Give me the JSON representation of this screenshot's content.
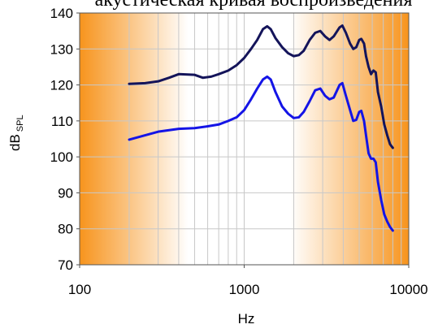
{
  "chart_data": {
    "type": "line",
    "title": "акустическая кривая воспроизведения",
    "xlabel": "Hz",
    "ylabel": "dB",
    "ylabel_sub": "SPL",
    "xscale": "log",
    "xlim": [
      100,
      10000
    ],
    "ylim": [
      70,
      140
    ],
    "xticks": [
      "100",
      "1000",
      "10000"
    ],
    "yticks": [
      "70",
      "80",
      "90",
      "100",
      "110",
      "120",
      "130",
      "140"
    ],
    "grid": true,
    "legend": "none",
    "background": "orange-white-orange gradient",
    "colors": {
      "series1": "#14145a",
      "series2": "#1414e6",
      "edge": "#f7941d"
    },
    "series": [
      {
        "points": [
          [
            200,
            120.3
          ],
          [
            250,
            120.5
          ],
          [
            300,
            121
          ],
          [
            350,
            122
          ],
          [
            400,
            123
          ],
          [
            500,
            122.8
          ],
          [
            560,
            122
          ],
          [
            630,
            122.3
          ],
          [
            700,
            123
          ],
          [
            800,
            124
          ],
          [
            900,
            125.5
          ],
          [
            1000,
            127.5
          ],
          [
            1100,
            130
          ],
          [
            1200,
            132.5
          ],
          [
            1300,
            135.5
          ],
          [
            1380,
            136.3
          ],
          [
            1450,
            135.5
          ],
          [
            1550,
            133
          ],
          [
            1700,
            130.5
          ],
          [
            1850,
            128.8
          ],
          [
            2000,
            128
          ],
          [
            2150,
            128.3
          ],
          [
            2300,
            129.5
          ],
          [
            2500,
            132.5
          ],
          [
            2700,
            134.5
          ],
          [
            2900,
            135
          ],
          [
            3100,
            133.5
          ],
          [
            3300,
            132.5
          ],
          [
            3500,
            133.5
          ],
          [
            3800,
            136
          ],
          [
            3950,
            136.5
          ],
          [
            4150,
            134.5
          ],
          [
            4400,
            131.5
          ],
          [
            4600,
            130
          ],
          [
            4800,
            130.5
          ],
          [
            5000,
            132.5
          ],
          [
            5150,
            132.8
          ],
          [
            5350,
            131.5
          ],
          [
            5500,
            128
          ],
          [
            5700,
            125
          ],
          [
            5900,
            123
          ],
          [
            6100,
            124
          ],
          [
            6300,
            123.5
          ],
          [
            6500,
            118
          ],
          [
            6800,
            114
          ],
          [
            7100,
            109
          ],
          [
            7400,
            106
          ],
          [
            7700,
            103.5
          ],
          [
            8000,
            102.5
          ]
        ]
      },
      {
        "points": [
          [
            200,
            104.8
          ],
          [
            250,
            106
          ],
          [
            300,
            107
          ],
          [
            400,
            107.8
          ],
          [
            500,
            108
          ],
          [
            600,
            108.5
          ],
          [
            700,
            109
          ],
          [
            800,
            110
          ],
          [
            900,
            111
          ],
          [
            1000,
            113
          ],
          [
            1100,
            116
          ],
          [
            1200,
            119
          ],
          [
            1300,
            121.5
          ],
          [
            1380,
            122.3
          ],
          [
            1450,
            121.5
          ],
          [
            1550,
            118
          ],
          [
            1700,
            114
          ],
          [
            1850,
            112
          ],
          [
            2000,
            110.8
          ],
          [
            2150,
            111
          ],
          [
            2300,
            112.5
          ],
          [
            2500,
            115.5
          ],
          [
            2700,
            118.5
          ],
          [
            2900,
            119
          ],
          [
            3100,
            117
          ],
          [
            3300,
            116
          ],
          [
            3500,
            116.5
          ],
          [
            3800,
            120
          ],
          [
            3950,
            120.5
          ],
          [
            4150,
            117
          ],
          [
            4400,
            113
          ],
          [
            4600,
            110
          ],
          [
            4800,
            110.3
          ],
          [
            5000,
            112.5
          ],
          [
            5150,
            112.8
          ],
          [
            5350,
            110
          ],
          [
            5500,
            106
          ],
          [
            5700,
            101
          ],
          [
            5900,
            99.5
          ],
          [
            6100,
            99.5
          ],
          [
            6300,
            98.5
          ],
          [
            6500,
            93
          ],
          [
            6800,
            88
          ],
          [
            7100,
            84
          ],
          [
            7400,
            82
          ],
          [
            7700,
            80.5
          ],
          [
            8000,
            79.5
          ]
        ]
      }
    ]
  }
}
